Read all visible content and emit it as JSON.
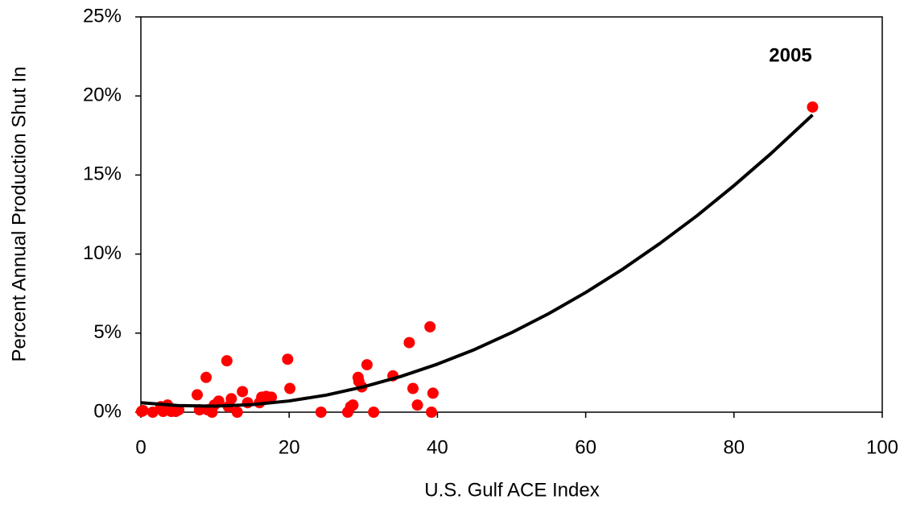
{
  "chart_data": {
    "type": "scatter",
    "x_label": "U.S. Gulf ACE Index",
    "y_label": "Percent Annual Production Shut In",
    "annotation": "2005",
    "xlim": [
      0,
      100
    ],
    "xticks": [
      0,
      20,
      40,
      60,
      80,
      100
    ],
    "ylim": [
      0,
      25
    ],
    "yticks": [
      {
        "value": 0,
        "label": "0%"
      },
      {
        "value": 5,
        "label": "5%"
      },
      {
        "value": 10,
        "label": "10%"
      },
      {
        "value": 15,
        "label": "15%"
      },
      {
        "value": 20,
        "label": "20%"
      },
      {
        "value": 25,
        "label": "25%"
      }
    ],
    "series": [
      {
        "color": "#ff0000",
        "x": [
          0.1,
          0.3,
          1.6,
          2.7,
          3.3,
          3.6,
          3,
          4.1,
          4.7,
          5.1,
          7.6,
          7.9,
          8.8,
          9,
          9.6,
          9.9,
          10.5,
          11.6,
          11.8,
          12.2,
          13,
          13.7,
          14.4,
          16,
          16.3,
          16.9,
          17.6,
          19.8,
          20.1,
          24.3,
          27.9,
          28.3,
          28.6,
          29.3,
          29.4,
          29.8,
          30.5,
          31.4,
          34,
          36.2,
          36.7,
          37.3,
          39,
          39.2,
          39.4,
          90.6
        ],
        "values": [
          0.05,
          0.1,
          0,
          0.35,
          0.35,
          0.45,
          0.05,
          0.05,
          0.05,
          0.15,
          1.1,
          0.15,
          2.2,
          0.15,
          0,
          0.45,
          0.7,
          3.25,
          0.35,
          0.85,
          0,
          1.3,
          0.6,
          0.6,
          0.95,
          1,
          0.95,
          3.35,
          1.5,
          0,
          0,
          0.35,
          0.45,
          2.2,
          1.95,
          1.6,
          3,
          0,
          2.3,
          4.4,
          1.5,
          0.45,
          5.4,
          0,
          1.2,
          19.3
        ]
      },
      {
        "color": "#000000",
        "style": "line",
        "x": [
          0,
          5,
          10,
          15,
          20,
          25,
          30,
          35,
          40,
          45,
          50,
          55,
          60,
          65,
          70,
          75,
          80,
          85,
          90.6
        ],
        "values": [
          0.6,
          0.42,
          0.38,
          0.48,
          0.71,
          1.08,
          1.6,
          2.25,
          3.04,
          3.96,
          5.03,
          6.23,
          7.57,
          9.05,
          10.67,
          12.42,
          14.33,
          16.36,
          18.8
        ]
      }
    ]
  }
}
